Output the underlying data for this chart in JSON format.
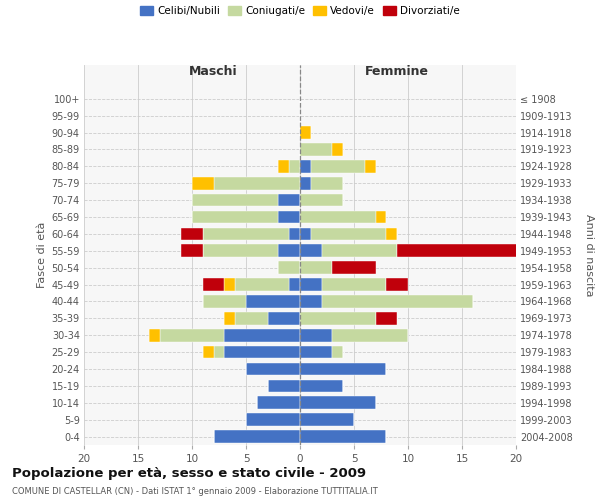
{
  "age_groups": [
    "0-4",
    "5-9",
    "10-14",
    "15-19",
    "20-24",
    "25-29",
    "30-34",
    "35-39",
    "40-44",
    "45-49",
    "50-54",
    "55-59",
    "60-64",
    "65-69",
    "70-74",
    "75-79",
    "80-84",
    "85-89",
    "90-94",
    "95-99",
    "100+"
  ],
  "birth_years": [
    "2004-2008",
    "1999-2003",
    "1994-1998",
    "1989-1993",
    "1984-1988",
    "1979-1983",
    "1974-1978",
    "1969-1973",
    "1964-1968",
    "1959-1963",
    "1954-1958",
    "1949-1953",
    "1944-1948",
    "1939-1943",
    "1934-1938",
    "1929-1933",
    "1924-1928",
    "1919-1923",
    "1914-1918",
    "1909-1913",
    "≤ 1908"
  ],
  "colors": {
    "celibi": "#4472c4",
    "coniugati": "#c5d9a0",
    "vedovi": "#ffc000",
    "divorziati": "#c0000b"
  },
  "maschi": {
    "celibi": [
      8,
      5,
      4,
      3,
      5,
      7,
      7,
      3,
      5,
      1,
      0,
      2,
      1,
      2,
      2,
      0,
      0,
      0,
      0,
      0,
      0
    ],
    "coniugati": [
      0,
      0,
      0,
      0,
      0,
      1,
      6,
      3,
      4,
      5,
      2,
      7,
      8,
      8,
      8,
      8,
      1,
      0,
      0,
      0,
      0
    ],
    "vedovi": [
      0,
      0,
      0,
      0,
      0,
      1,
      1,
      1,
      0,
      1,
      0,
      0,
      0,
      0,
      0,
      2,
      1,
      0,
      0,
      0,
      0
    ],
    "divorziati": [
      0,
      0,
      0,
      0,
      0,
      0,
      0,
      0,
      0,
      2,
      0,
      2,
      2,
      0,
      0,
      0,
      0,
      0,
      0,
      0,
      0
    ]
  },
  "femmine": {
    "celibi": [
      8,
      5,
      7,
      4,
      8,
      3,
      3,
      0,
      2,
      2,
      0,
      2,
      1,
      0,
      0,
      1,
      1,
      0,
      0,
      0,
      0
    ],
    "coniugati": [
      0,
      0,
      0,
      0,
      0,
      1,
      7,
      7,
      14,
      6,
      3,
      7,
      7,
      7,
      4,
      3,
      5,
      3,
      0,
      0,
      0
    ],
    "vedovi": [
      0,
      0,
      0,
      0,
      0,
      0,
      0,
      0,
      0,
      0,
      0,
      0,
      1,
      1,
      0,
      0,
      1,
      1,
      1,
      0,
      0
    ],
    "divorziati": [
      0,
      0,
      0,
      0,
      0,
      0,
      0,
      2,
      0,
      2,
      4,
      12,
      0,
      0,
      0,
      0,
      0,
      0,
      0,
      0,
      0
    ]
  },
  "xlim": 20,
  "title": "Popolazione per età, sesso e stato civile - 2009",
  "subtitle": "COMUNE DI CASTELLAR (CN) - Dati ISTAT 1° gennaio 2009 - Elaborazione TUTTITALIA.IT",
  "ylabel_left": "Fasce di età",
  "ylabel_right": "Anni di nascita",
  "xlabel_left": "Maschi",
  "xlabel_right": "Femmine",
  "bg_color": "#f5f5f5"
}
